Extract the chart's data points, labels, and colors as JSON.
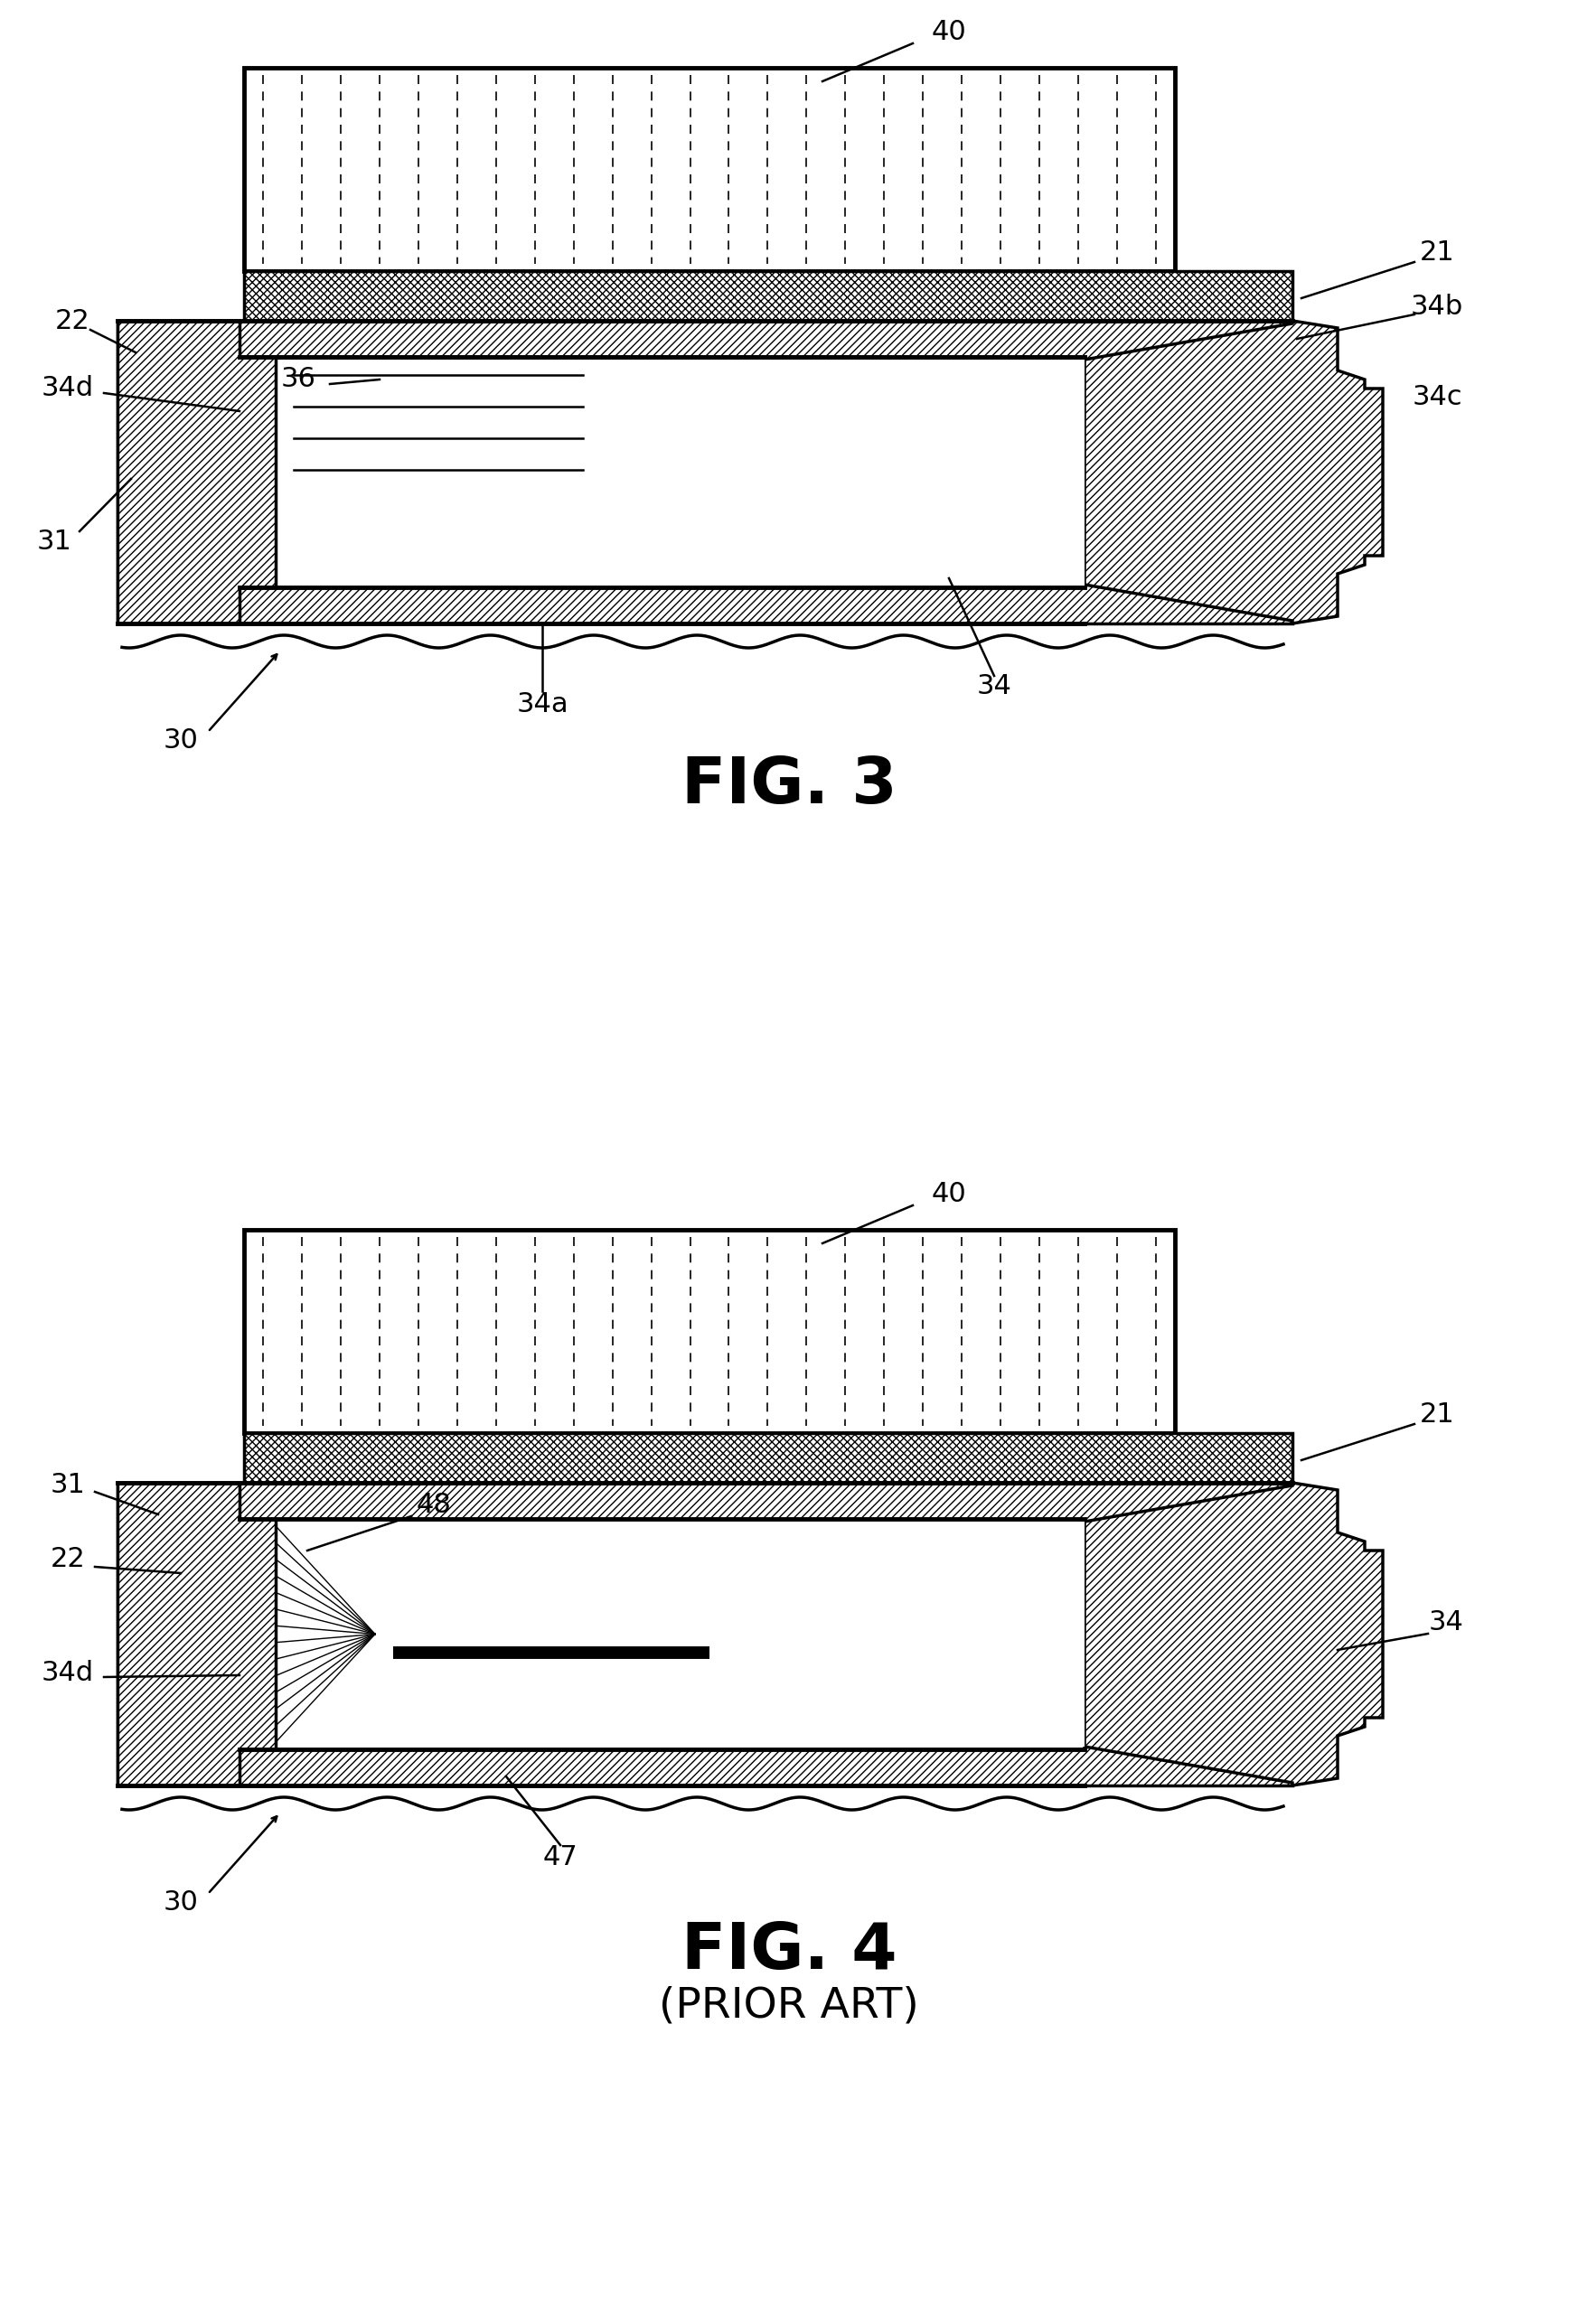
{
  "fig_width": 17.46,
  "fig_height": 25.72,
  "background_color": "#ffffff",
  "fig3_title": "FIG. 3",
  "fig4_title": "FIG. 4",
  "fig4_subtitle": "(PRIOR ART)"
}
